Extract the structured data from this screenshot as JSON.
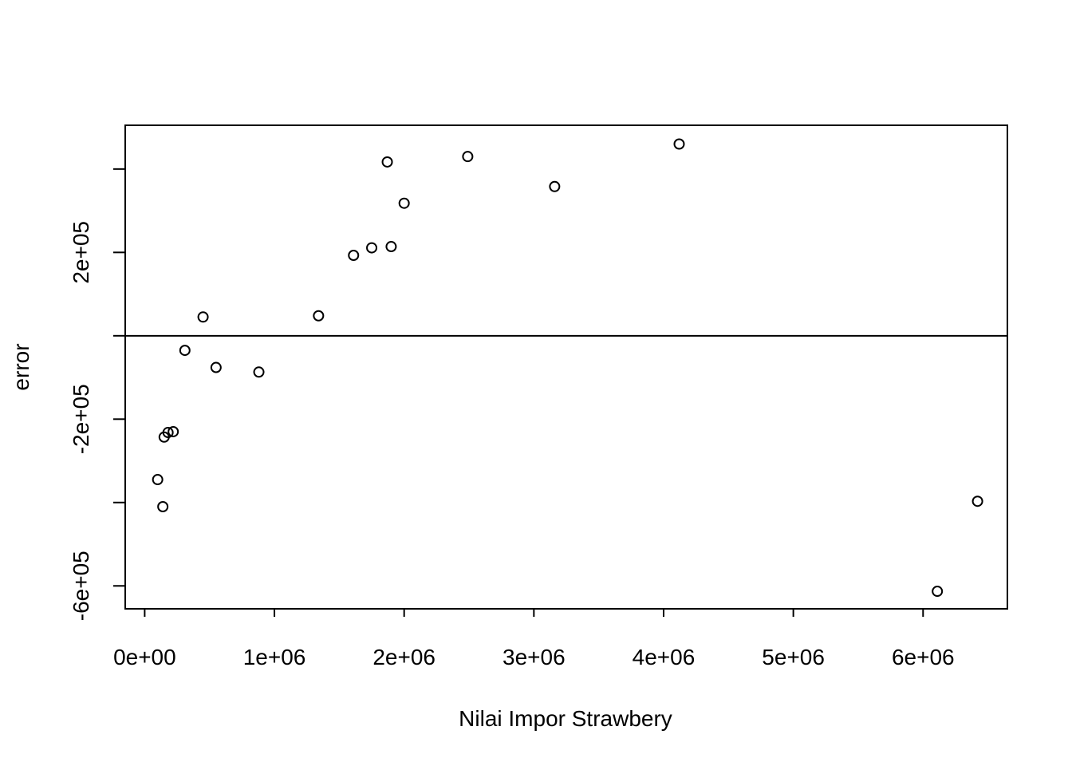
{
  "chart_data": {
    "type": "scatter",
    "title": "",
    "xlabel": "Nilai Impor Strawbery",
    "ylabel": "error",
    "xlim": [
      -150000,
      6650000
    ],
    "ylim": [
      -655000,
      505000
    ],
    "x_ticks": [
      {
        "value": 0,
        "label": "0e+00"
      },
      {
        "value": 1000000,
        "label": "1e+06"
      },
      {
        "value": 2000000,
        "label": "2e+06"
      },
      {
        "value": 3000000,
        "label": "3e+06"
      },
      {
        "value": 4000000,
        "label": "4e+06"
      },
      {
        "value": 5000000,
        "label": "5e+06"
      },
      {
        "value": 6000000,
        "label": "6e+06"
      }
    ],
    "y_ticks": [
      {
        "value": -600000,
        "label": "-6e+05"
      },
      {
        "value": -400000,
        "label": ""
      },
      {
        "value": -200000,
        "label": "-2e+05"
      },
      {
        "value": 0,
        "label": ""
      },
      {
        "value": 200000,
        "label": "2e+05"
      },
      {
        "value": 400000,
        "label": ""
      }
    ],
    "reference_line": {
      "y": 0
    },
    "grid": false,
    "legend": "none",
    "points": [
      {
        "x": 4120000,
        "y": 460000
      },
      {
        "x": 2490000,
        "y": 430000
      },
      {
        "x": 1870000,
        "y": 417000
      },
      {
        "x": 3160000,
        "y": 358000
      },
      {
        "x": 2000000,
        "y": 318000
      },
      {
        "x": 1900000,
        "y": 214000
      },
      {
        "x": 1750000,
        "y": 211000
      },
      {
        "x": 1610000,
        "y": 193000
      },
      {
        "x": 1340000,
        "y": 48000
      },
      {
        "x": 450000,
        "y": 45000
      },
      {
        "x": 310000,
        "y": -35000
      },
      {
        "x": 550000,
        "y": -76000
      },
      {
        "x": 880000,
        "y": -87000
      },
      {
        "x": 220000,
        "y": -230000
      },
      {
        "x": 180000,
        "y": -232000
      },
      {
        "x": 150000,
        "y": -243000
      },
      {
        "x": 100000,
        "y": -345000
      },
      {
        "x": 140000,
        "y": -410000
      },
      {
        "x": 6420000,
        "y": -397000
      },
      {
        "x": 6110000,
        "y": -613000
      }
    ]
  }
}
